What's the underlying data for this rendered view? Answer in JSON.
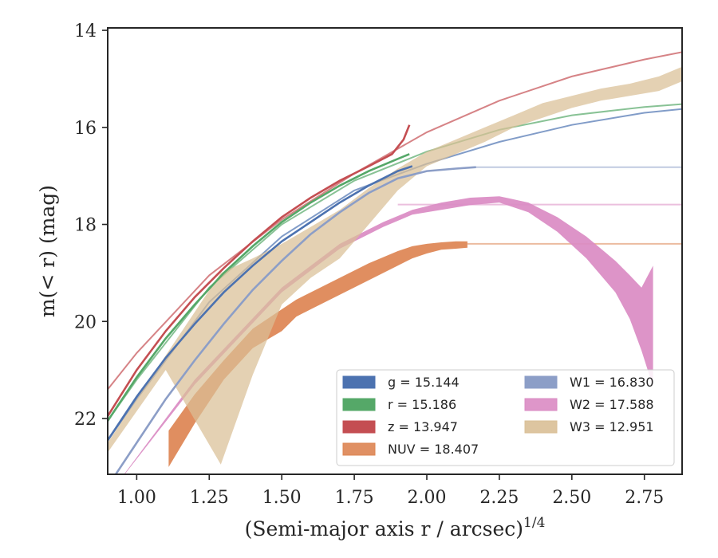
{
  "chart_data": {
    "type": "line",
    "xlabel": "(Semi-major axis r / arcsec)",
    "xlabel_superscript": "1/4",
    "ylabel": "m(< r) (mag)",
    "xlim": [
      0.9,
      2.88
    ],
    "ylim": [
      23.15,
      13.95
    ],
    "y_inverted": true,
    "grid": false,
    "legend_position": "lower-right",
    "xticks": [
      1.0,
      1.25,
      1.5,
      1.75,
      2.0,
      2.25,
      2.5,
      2.75
    ],
    "xtick_labels": [
      "1.00",
      "1.25",
      "1.50",
      "1.75",
      "2.00",
      "2.25",
      "2.50",
      "2.75"
    ],
    "yticks": [
      14,
      16,
      18,
      20,
      22
    ],
    "ytick_labels": [
      "14",
      "16",
      "18",
      "20",
      "22"
    ],
    "series": [
      {
        "name": "g = 15.144",
        "color": "#4c72b0",
        "style": "line",
        "x": [
          0.9,
          1.0,
          1.1,
          1.2,
          1.3,
          1.4,
          1.5,
          1.6,
          1.7,
          1.8,
          1.9,
          1.95
        ],
        "y": [
          22.45,
          21.55,
          20.75,
          20.05,
          19.4,
          18.85,
          18.35,
          17.95,
          17.55,
          17.2,
          16.9,
          16.8
        ],
        "fit_x": [
          0.9,
          1.0,
          1.25,
          1.5,
          1.75,
          2.0,
          2.25,
          2.5,
          2.75,
          2.88
        ],
        "fit_y": [
          22.45,
          21.6,
          19.6,
          18.25,
          17.3,
          16.75,
          16.3,
          15.95,
          15.7,
          15.62
        ]
      },
      {
        "name": "r = 15.186",
        "color": "#55a868",
        "style": "line",
        "x": [
          0.9,
          1.0,
          1.1,
          1.2,
          1.3,
          1.4,
          1.5,
          1.6,
          1.7,
          1.8,
          1.9,
          1.94
        ],
        "y": [
          22.05,
          21.15,
          20.35,
          19.65,
          19.0,
          18.45,
          17.95,
          17.55,
          17.2,
          16.9,
          16.65,
          16.55
        ],
        "fit_x": [
          0.9,
          1.0,
          1.25,
          1.5,
          1.75,
          2.0,
          2.25,
          2.5,
          2.75,
          2.88
        ],
        "fit_y": [
          22.05,
          21.2,
          19.3,
          18.0,
          17.1,
          16.5,
          16.05,
          15.75,
          15.58,
          15.52
        ]
      },
      {
        "name": "z = 13.947",
        "color": "#c44e52",
        "style": "line",
        "x": [
          0.9,
          1.0,
          1.1,
          1.2,
          1.3,
          1.4,
          1.5,
          1.6,
          1.7,
          1.8,
          1.88,
          1.92,
          1.94
        ],
        "y": [
          21.95,
          21.0,
          20.2,
          19.5,
          18.9,
          18.35,
          17.85,
          17.45,
          17.1,
          16.8,
          16.55,
          16.25,
          15.95
        ],
        "fit_x": [
          0.9,
          1.0,
          1.25,
          1.5,
          1.75,
          2.0,
          2.25,
          2.5,
          2.75,
          2.88
        ],
        "fit_y": [
          21.4,
          20.65,
          19.05,
          17.9,
          16.95,
          16.1,
          15.45,
          14.95,
          14.6,
          14.45
        ]
      },
      {
        "name": "NUV = 18.407",
        "color": "#dd8452",
        "style": "band",
        "x": [
          1.11,
          1.2,
          1.3,
          1.4,
          1.5,
          1.55,
          1.6,
          1.7,
          1.8,
          1.9,
          1.95,
          2.0,
          2.05,
          2.1,
          2.14
        ],
        "y_upper": [
          22.25,
          21.5,
          20.8,
          20.15,
          19.75,
          19.55,
          19.4,
          19.1,
          18.8,
          18.55,
          18.45,
          18.4,
          18.37,
          18.35,
          18.35
        ],
        "y_lower": [
          23.0,
          22.1,
          21.2,
          20.55,
          20.2,
          19.9,
          19.75,
          19.45,
          19.15,
          18.85,
          18.7,
          18.6,
          18.52,
          18.5,
          18.48
        ],
        "asymptote": 18.4,
        "asymptote_from": 2.14
      },
      {
        "name": "W1 = 16.830",
        "color": "#8c9ec7",
        "style": "line",
        "x": [
          0.9,
          1.0,
          1.1,
          1.2,
          1.3,
          1.4,
          1.5,
          1.6,
          1.7,
          1.8,
          1.9,
          2.0,
          2.1,
          2.17
        ],
        "y": [
          23.4,
          22.5,
          21.6,
          20.8,
          20.05,
          19.35,
          18.75,
          18.2,
          17.75,
          17.35,
          17.05,
          16.9,
          16.85,
          16.82
        ],
        "asymptote": 16.82,
        "asymptote_from": 2.17
      },
      {
        "name": "W2 = 17.588",
        "color": "#da8bc3",
        "style": "band",
        "x": [
          0.9,
          1.2,
          1.5,
          1.7,
          1.85,
          1.95,
          2.05,
          2.15,
          2.25,
          2.35,
          2.45,
          2.55,
          2.65,
          2.7,
          2.74,
          2.78
        ],
        "y_upper": [
          23.6,
          21.2,
          19.3,
          18.4,
          17.95,
          17.7,
          17.55,
          17.45,
          17.42,
          17.55,
          17.85,
          18.25,
          18.75,
          19.05,
          19.3,
          18.85
        ],
        "y_lower": [
          23.6,
          21.3,
          19.4,
          18.5,
          18.05,
          17.8,
          17.7,
          17.6,
          17.55,
          17.75,
          18.15,
          18.7,
          19.4,
          19.95,
          20.6,
          21.35
        ],
        "asymptote": 17.59,
        "asymptote_from": 1.9
      },
      {
        "name": "W3 = 12.951",
        "color": "#d9bf96",
        "style": "band",
        "x": [
          0.9,
          1.1,
          1.29,
          1.4,
          1.5,
          1.6,
          1.7,
          1.8,
          1.9,
          2.0,
          2.1,
          2.2,
          2.3,
          2.4,
          2.5,
          2.6,
          2.7,
          2.8,
          2.88
        ],
        "y_upper": [
          22.5,
          20.7,
          19.0,
          18.7,
          18.4,
          18.05,
          17.7,
          17.25,
          16.85,
          16.5,
          16.25,
          16.0,
          15.75,
          15.5,
          15.35,
          15.2,
          15.1,
          14.95,
          14.75
        ],
        "y_lower": [
          22.7,
          21.0,
          22.95,
          21.1,
          19.65,
          19.1,
          18.7,
          18.0,
          17.3,
          16.8,
          16.55,
          16.3,
          16.0,
          15.8,
          15.6,
          15.45,
          15.35,
          15.25,
          15.05
        ]
      }
    ]
  }
}
